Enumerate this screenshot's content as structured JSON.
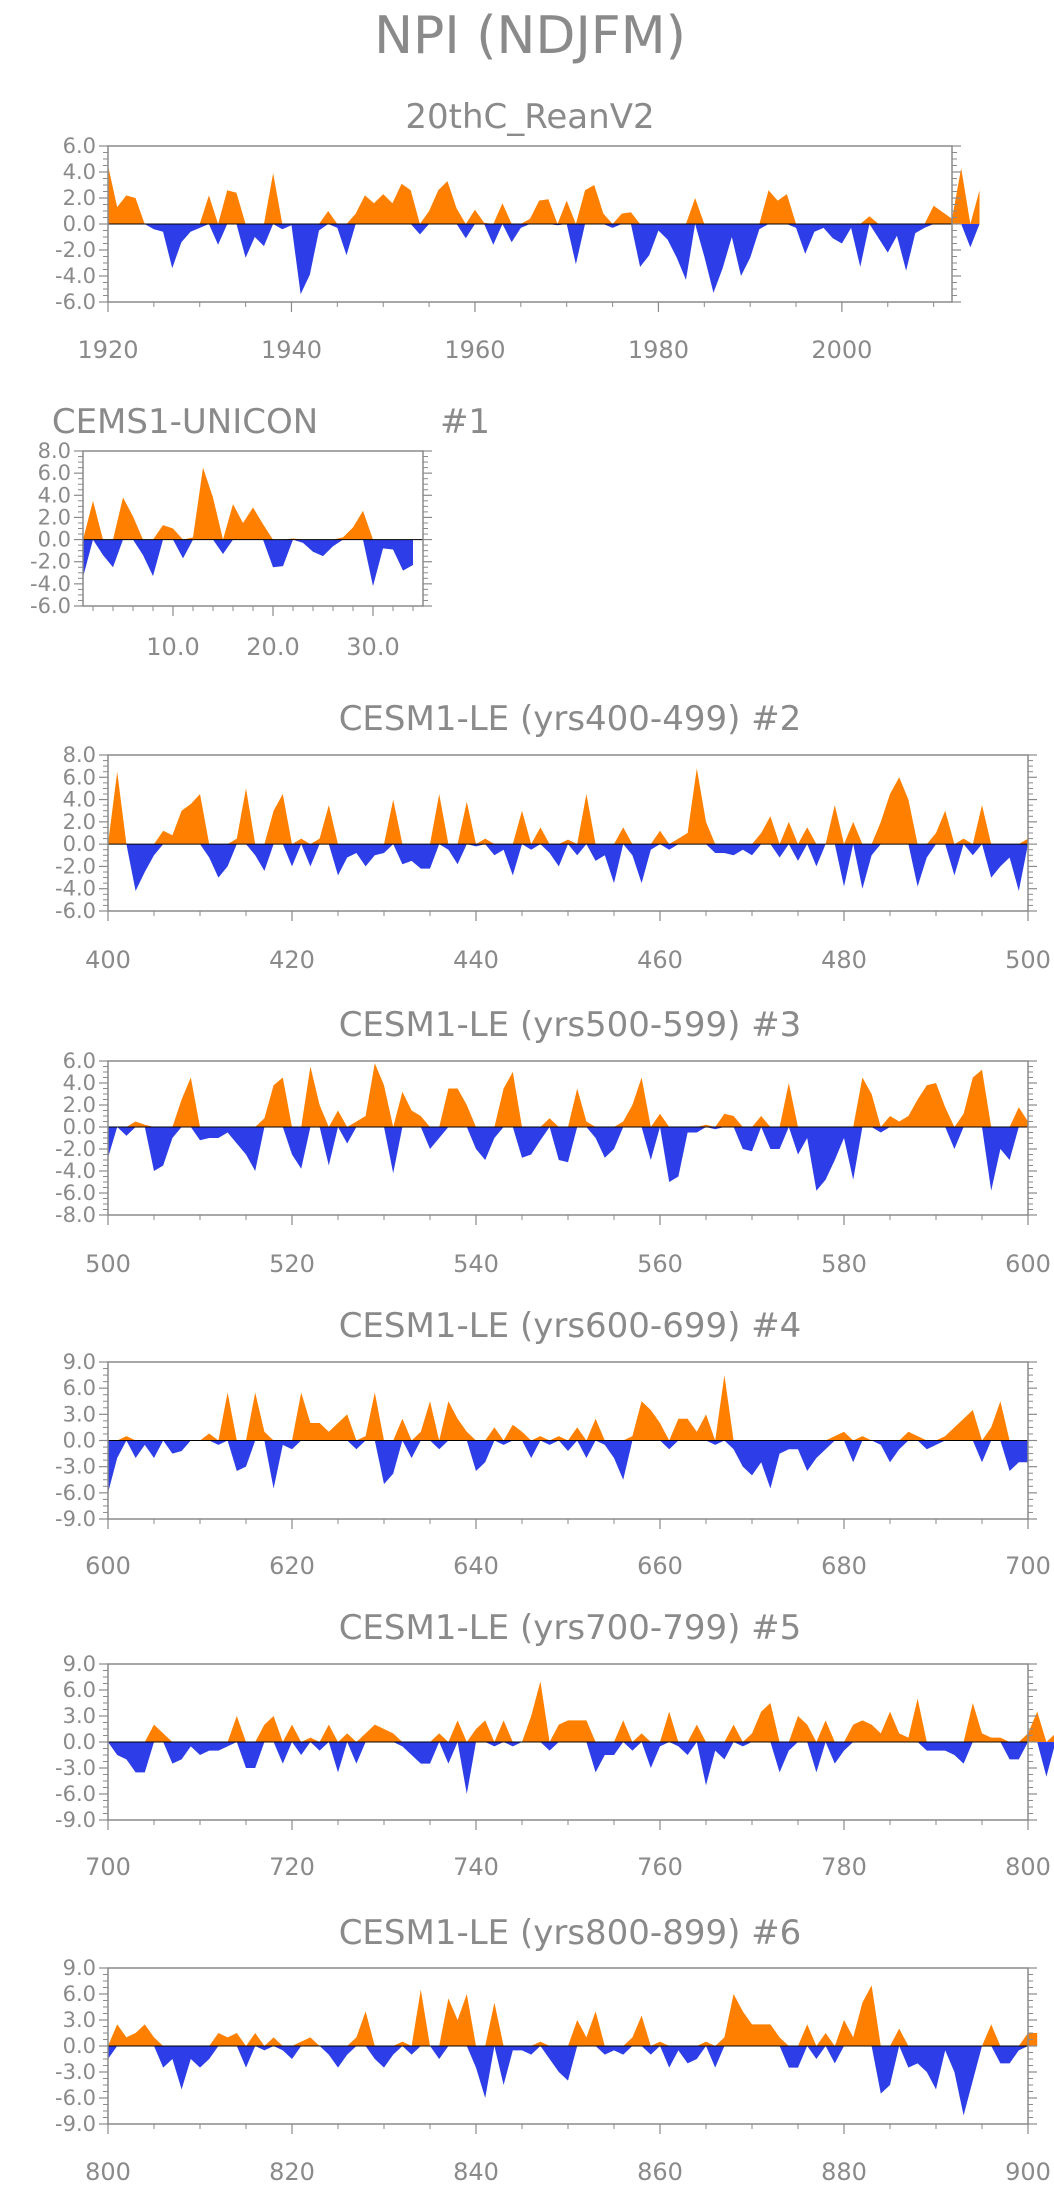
{
  "main_title": "NPI (NDJFM)",
  "colors": {
    "positive": "#ff8000",
    "negative": "#2d3ee8",
    "axis": "#8a8a8a",
    "zero": "#000000"
  },
  "chart_data": [
    {
      "type": "area",
      "title": "20thC_ReanV2",
      "xlim": [
        1920,
        2012
      ],
      "xticks": [
        1920,
        1940,
        1960,
        1980,
        2000
      ],
      "ylim": [
        -6,
        6
      ],
      "yticks": [
        "6.0",
        "4.0",
        "2.0",
        "0.0",
        "-2.0",
        "-4.0",
        "-6.0"
      ],
      "x_start": 1920,
      "values": [
        4.5,
        1.3,
        2.2,
        2.0,
        0.0,
        -0.4,
        -0.6,
        -3.4,
        -1.4,
        -0.6,
        -0.3,
        2.2,
        -1.6,
        2.6,
        2.4,
        -2.6,
        -1.0,
        -1.7,
        3.9,
        -0.4,
        -0.1,
        -5.4,
        -3.9,
        -0.5,
        1.0,
        -0.3,
        -2.4,
        0.8,
        2.2,
        1.6,
        2.3,
        1.6,
        3.1,
        2.6,
        -0.8,
        1.0,
        2.6,
        3.3,
        1.2,
        -1.1,
        1.1,
        0.1,
        -1.6,
        1.6,
        -1.4,
        -0.3,
        0.4,
        1.8,
        1.9,
        -0.1,
        1.8,
        -3.1,
        2.6,
        3.0,
        0.8,
        -0.3,
        0.8,
        0.9,
        -3.3,
        -2.4,
        -0.5,
        -1.2,
        -2.6,
        -4.3,
        2.0,
        -2.5,
        -5.3,
        -3.4,
        -1.0,
        -4.0,
        -2.6,
        -0.4,
        2.6,
        1.8,
        2.3,
        -0.3,
        -2.3,
        -0.6,
        -0.3,
        -1.1,
        -1.5,
        -0.3,
        -3.3,
        0.6,
        -1.1,
        -2.2,
        -0.9,
        -3.6,
        -0.7,
        -0.3,
        1.4,
        0.9,
        0.4,
        4.3,
        -1.8,
        2.6
      ]
    },
    {
      "type": "area",
      "title": "CEMS1-UNICON",
      "title_right": "#1",
      "xlim": [
        1,
        35
      ],
      "xticks": [
        "10.0",
        "20.0",
        "30.0"
      ],
      "xtick_values": [
        10,
        20,
        30
      ],
      "ylim": [
        -6,
        8
      ],
      "yticks": [
        "8.0",
        "6.0",
        "4.0",
        "2.0",
        "0.0",
        "-2.0",
        "-4.0",
        "-6.0"
      ],
      "x_start": 1,
      "values": [
        -3.4,
        3.5,
        -1.4,
        -2.5,
        3.8,
        2.1,
        -1.4,
        -3.3,
        1.3,
        1.0,
        -1.7,
        0.2,
        6.5,
        3.8,
        -1.3,
        3.2,
        1.5,
        2.9,
        1.4,
        -2.5,
        -2.4,
        0.1,
        -0.3,
        -1.1,
        -1.5,
        -0.6,
        0.2,
        1.1,
        2.6,
        -4.2,
        -0.8,
        -0.9,
        -2.8,
        -2.3
      ]
    },
    {
      "type": "area",
      "title": "CESM1-LE (yrs400-499) #2",
      "xlim": [
        400,
        500
      ],
      "xticks": [
        400,
        420,
        440,
        460,
        480,
        500
      ],
      "ylim": [
        -6,
        8
      ],
      "yticks": [
        "8.0",
        "6.0",
        "4.0",
        "2.0",
        "0.0",
        "-2.0",
        "-4.0",
        "-6.0"
      ],
      "x_start": 400,
      "values": [
        0.0,
        6.5,
        0.0,
        -4.2,
        -2.5,
        -1.0,
        1.2,
        0.8,
        3.0,
        3.6,
        4.5,
        -1.2,
        -3.0,
        -2.0,
        0.5,
        5.0,
        -1.0,
        -2.4,
        3.0,
        4.5,
        -2.0,
        0.5,
        -2.0,
        0.5,
        3.5,
        -2.8,
        -1.2,
        -0.8,
        -2.0,
        -1.0,
        -0.8,
        4.0,
        -1.8,
        -1.5,
        -2.2,
        -2.2,
        4.5,
        -0.5,
        -1.8,
        3.8,
        -0.2,
        0.5,
        -1.0,
        -0.5,
        -2.8,
        3.0,
        -0.5,
        1.5,
        -0.8,
        -2.0,
        0.4,
        -1.0,
        4.5,
        -1.5,
        -1.0,
        -3.5,
        1.5,
        -1.0,
        -3.5,
        -0.5,
        1.2,
        -0.5,
        0.5,
        1.0,
        6.8,
        2.0,
        -0.8,
        -0.8,
        -1.0,
        -0.5,
        -1.0,
        1.0,
        2.5,
        -1.2,
        2.0,
        -1.5,
        1.5,
        -2.0,
        0.0,
        3.5,
        -3.8,
        2.0,
        -4.0,
        -1.0,
        2.0,
        4.5,
        6.0,
        4.0,
        -3.8,
        -1.2,
        1.0,
        3.0,
        -2.8,
        0.5,
        -1.0,
        3.5,
        -3.0,
        -2.0,
        -1.2,
        -4.2,
        0.5
      ]
    },
    {
      "type": "area",
      "title": "CESM1-LE (yrs500-599) #3",
      "xlim": [
        500,
        600
      ],
      "xticks": [
        500,
        520,
        540,
        560,
        580,
        600
      ],
      "ylim": [
        -8,
        6
      ],
      "yticks": [
        "6.0",
        "4.0",
        "2.0",
        "0.0",
        "-2.0",
        "-4.0",
        "-6.0",
        "-8.0"
      ],
      "x_start": 500,
      "values": [
        -2.8,
        0.0,
        -0.8,
        0.5,
        0.2,
        -4.0,
        -3.5,
        -1.0,
        2.5,
        4.5,
        -1.2,
        -1.0,
        -1.0,
        -0.5,
        -1.5,
        -2.5,
        -4.0,
        0.8,
        3.8,
        4.5,
        -2.5,
        -3.8,
        5.5,
        2.0,
        -3.5,
        1.5,
        -1.5,
        0.5,
        1.0,
        5.8,
        3.8,
        -4.2,
        3.2,
        1.5,
        1.0,
        -2.0,
        -1.0,
        3.5,
        3.5,
        2.0,
        -2.0,
        -3.0,
        -1.0,
        3.5,
        5.0,
        -2.8,
        -2.5,
        -1.2,
        0.8,
        -3.0,
        -3.2,
        3.5,
        0.5,
        -1.0,
        -2.8,
        -2.0,
        0.5,
        2.0,
        4.5,
        -3.0,
        1.2,
        -5.0,
        -4.5,
        -0.5,
        -0.5,
        0.2,
        -0.2,
        1.2,
        1.0,
        -2.0,
        -2.2,
        1.0,
        -2.0,
        -2.0,
        4.0,
        -2.5,
        -1.0,
        -5.8,
        -4.8,
        -3.0,
        -1.0,
        -4.8,
        4.5,
        3.0,
        -0.5,
        1.0,
        0.5,
        1.0,
        2.5,
        3.8,
        4.0,
        1.8,
        -2.0,
        1.2,
        4.5,
        5.2,
        -5.8,
        -2.0,
        -3.0,
        1.8,
        0.5
      ]
    },
    {
      "type": "area",
      "title": "CESM1-LE (yrs600-699) #4",
      "xlim": [
        600,
        700
      ],
      "xticks": [
        600,
        620,
        640,
        660,
        680,
        700
      ],
      "ylim": [
        -9,
        9
      ],
      "yticks": [
        "9.0",
        "6.0",
        "3.0",
        "0.0",
        "-3.0",
        "-6.0",
        "-9.0"
      ],
      "x_start": 600,
      "values": [
        -6.0,
        -2.0,
        0.5,
        -2.0,
        -0.5,
        -2.0,
        0.0,
        -1.5,
        -1.2,
        0.0,
        0.0,
        0.8,
        -0.5,
        5.5,
        -3.5,
        -3.0,
        5.5,
        1.0,
        -5.5,
        -0.5,
        -1.0,
        5.5,
        2.0,
        2.0,
        1.0,
        2.0,
        3.0,
        -1.0,
        0.5,
        5.5,
        -5.0,
        -3.8,
        2.5,
        -2.0,
        1.0,
        4.5,
        -1.0,
        4.5,
        2.5,
        1.0,
        -3.5,
        -2.5,
        1.5,
        -0.5,
        1.8,
        1.0,
        -2.0,
        0.5,
        -0.5,
        0.5,
        -1.2,
        1.5,
        -2.0,
        2.5,
        -0.5,
        -2.0,
        -4.5,
        0.5,
        4.5,
        3.5,
        2.0,
        -1.0,
        2.5,
        2.5,
        1.0,
        3.0,
        -0.5,
        7.5,
        -1.0,
        -3.0,
        -4.0,
        -2.5,
        -5.5,
        -1.5,
        -1.0,
        -1.0,
        -3.5,
        -2.0,
        -1.0,
        0.5,
        1.0,
        -2.5,
        0.5,
        0.0,
        -0.5,
        -2.5,
        -1.0,
        1.0,
        0.5,
        -1.0,
        -0.5,
        0.5,
        1.5,
        2.5,
        3.5,
        -2.5,
        1.5,
        4.5,
        -3.5,
        -2.5,
        -2.5
      ]
    },
    {
      "type": "area",
      "title": "CESM1-LE (yrs700-799) #5",
      "xlim": [
        700,
        800
      ],
      "xticks": [
        700,
        720,
        740,
        760,
        780,
        800
      ],
      "ylim": [
        -9,
        9
      ],
      "yticks": [
        "9.0",
        "6.0",
        "3.0",
        "0.0",
        "-3.0",
        "-6.0",
        "-9.0"
      ],
      "x_start": 700,
      "values": [
        0.0,
        -1.5,
        -2.0,
        -3.5,
        -3.5,
        2.0,
        1.0,
        -2.5,
        -2.0,
        -0.5,
        -1.5,
        -1.0,
        -1.0,
        -0.5,
        3.0,
        -3.0,
        -3.0,
        2.0,
        3.0,
        -2.5,
        2.0,
        -1.5,
        0.5,
        -1.0,
        2.0,
        -3.5,
        1.0,
        -2.5,
        1.0,
        2.0,
        1.5,
        1.0,
        -0.5,
        -1.5,
        -2.5,
        -2.5,
        1.0,
        -2.5,
        2.5,
        -6.0,
        1.5,
        2.5,
        -0.5,
        2.5,
        -0.5,
        0.0,
        3.0,
        7.0,
        -1.0,
        2.0,
        2.5,
        2.5,
        2.5,
        -3.5,
        -1.5,
        -1.5,
        2.5,
        -1.0,
        1.0,
        -3.0,
        -0.5,
        3.5,
        -0.5,
        -1.5,
        2.0,
        -5.0,
        -1.0,
        -2.0,
        2.0,
        -0.5,
        1.0,
        3.5,
        4.5,
        -3.5,
        -1.0,
        3.0,
        2.0,
        -3.5,
        2.5,
        -2.5,
        -1.0,
        2.0,
        2.5,
        2.0,
        1.0,
        3.5,
        1.0,
        0.5,
        5.0,
        -1.0,
        -1.0,
        -1.0,
        -1.5,
        -2.5,
        4.5,
        1.0,
        0.5,
        0.5,
        -2.0,
        -2.0,
        1.0,
        3.5,
        -4.0,
        1.0
      ]
    },
    {
      "type": "area",
      "title": "CESM1-LE (yrs800-899) #6",
      "xlim": [
        800,
        900
      ],
      "xticks": [
        800,
        820,
        840,
        860,
        880,
        900
      ],
      "ylim": [
        -9,
        9
      ],
      "yticks": [
        "9.0",
        "6.0",
        "3.0",
        "0.0",
        "-3.0",
        "-6.0",
        "-9.0"
      ],
      "x_start": 800,
      "values": [
        -1.5,
        2.5,
        1.0,
        1.5,
        2.5,
        1.0,
        -2.5,
        -1.5,
        -5.0,
        -1.5,
        -2.5,
        -1.5,
        1.5,
        1.0,
        1.5,
        -2.5,
        1.5,
        -0.5,
        1.0,
        -0.5,
        -1.5,
        0.5,
        1.0,
        0.0,
        -1.0,
        -2.5,
        -1.0,
        1.0,
        4.0,
        -1.5,
        -2.5,
        -1.0,
        0.5,
        -1.0,
        6.5,
        0.0,
        -1.5,
        5.5,
        3.0,
        6.0,
        -2.5,
        -6.0,
        5.0,
        -4.5,
        -0.5,
        -0.5,
        -1.0,
        0.5,
        -1.5,
        -3.0,
        -4.0,
        3.0,
        1.0,
        4.0,
        -1.0,
        -0.5,
        -1.0,
        1.0,
        3.5,
        -1.0,
        0.5,
        -2.5,
        -0.5,
        -2.0,
        -1.5,
        0.5,
        -2.5,
        1.0,
        6.0,
        4.0,
        2.5,
        2.5,
        2.5,
        1.0,
        -2.5,
        -2.5,
        2.5,
        -1.5,
        1.5,
        -2.0,
        3.0,
        1.0,
        5.0,
        7.0,
        -5.5,
        -4.5,
        2.0,
        -2.5,
        -2.0,
        -3.0,
        -5.0,
        -0.5,
        -3.0,
        -8.0,
        -4.0,
        0.0,
        2.5,
        -2.0,
        -2.0,
        -0.5,
        1.5,
        1.5
      ]
    }
  ]
}
